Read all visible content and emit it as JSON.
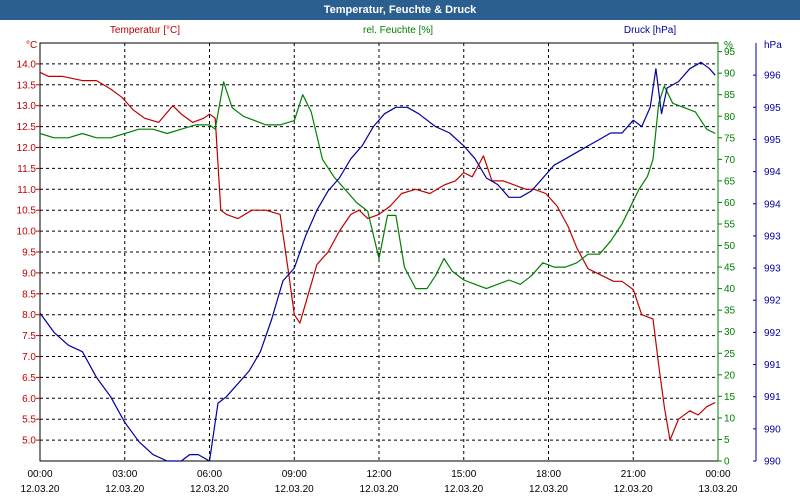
{
  "window": {
    "title": "Temperatur, Feuchte & Druck"
  },
  "chart_data": {
    "type": "line",
    "title": "Temperatur, Feuchte & Druck",
    "grid": true,
    "x_labels": [
      {
        "time": "00:00",
        "date": "12.03.20"
      },
      {
        "time": "03:00",
        "date": "12.03.20"
      },
      {
        "time": "06:00",
        "date": "12.03.20"
      },
      {
        "time": "09:00",
        "date": "12.03.20"
      },
      {
        "time": "12:00",
        "date": "12.03.20"
      },
      {
        "time": "15:00",
        "date": "12.03.20"
      },
      {
        "time": "18:00",
        "date": "12.03.20"
      },
      {
        "time": "21:00",
        "date": "12.03.20"
      },
      {
        "time": "00:00",
        "date": "13.03.20"
      }
    ],
    "xlim_hours": [
      0,
      24
    ],
    "axes": {
      "temperature": {
        "label": "Temperatur [°C]",
        "unit": "°C",
        "color": "#c00000",
        "side": "left",
        "ylim": [
          4.5,
          14.5
        ],
        "ticks": [
          "5.0",
          "5.5",
          "6.0",
          "6.5",
          "7.0",
          "7.5",
          "8.0",
          "8.5",
          "9.0",
          "9.5",
          "10.0",
          "10.5",
          "11.0",
          "11.5",
          "12.0",
          "12.5",
          "13.0",
          "13.5",
          "14.0"
        ]
      },
      "humidity": {
        "label": "rel. Feuchte [%]",
        "unit": "%",
        "color": "#008000",
        "side": "right-inner",
        "ylim": [
          0,
          97
        ],
        "ticks": [
          "0",
          "5",
          "10",
          "15",
          "20",
          "25",
          "30",
          "35",
          "40",
          "45",
          "50",
          "55",
          "60",
          "65",
          "70",
          "75",
          "80",
          "85",
          "90",
          "95"
        ]
      },
      "pressure": {
        "label": "Druck [hPa]",
        "unit": "hPa",
        "color": "#0000a0",
        "side": "right-outer",
        "ylim": [
          990,
          996.5
        ],
        "ticks": [
          "990",
          "990",
          "991",
          "991",
          "992",
          "992",
          "993",
          "993",
          "994",
          "994",
          "995",
          "995",
          "996"
        ],
        "tick_values": [
          990,
          990.5,
          991,
          991.5,
          992,
          992.5,
          993,
          993.5,
          994,
          994.5,
          995,
          995.5,
          996
        ]
      }
    },
    "series": [
      {
        "name": "Temperatur [°C]",
        "axis": "temperature",
        "color": "#c00000",
        "x": [
          0,
          0.3,
          0.8,
          1.5,
          2.0,
          2.5,
          2.9,
          3.3,
          3.7,
          4.2,
          4.7,
          5.0,
          5.4,
          5.8,
          6.0,
          6.2,
          6.4,
          6.6,
          7.0,
          7.5,
          8.0,
          8.5,
          8.8,
          9.0,
          9.2,
          9.5,
          9.8,
          10.2,
          10.6,
          11.0,
          11.3,
          11.6,
          12.0,
          12.4,
          12.8,
          13.3,
          13.8,
          14.3,
          14.7,
          15.0,
          15.3,
          15.7,
          16.0,
          16.4,
          16.8,
          17.2,
          17.5,
          17.9,
          18.3,
          18.7,
          19.0,
          19.4,
          19.7,
          20.0,
          20.3,
          20.6,
          21.0,
          21.3,
          21.7,
          21.9,
          22.1,
          22.3,
          22.6,
          23.0,
          23.3,
          23.6,
          23.9
        ],
        "values": [
          13.8,
          13.7,
          13.7,
          13.6,
          13.6,
          13.4,
          13.2,
          12.9,
          12.7,
          12.6,
          13.0,
          12.8,
          12.6,
          12.7,
          12.8,
          12.7,
          10.5,
          10.4,
          10.3,
          10.5,
          10.5,
          10.4,
          9.0,
          8.0,
          7.8,
          8.5,
          9.2,
          9.5,
          10.0,
          10.4,
          10.5,
          10.3,
          10.4,
          10.6,
          10.9,
          11.0,
          10.9,
          11.1,
          11.2,
          11.4,
          11.3,
          11.8,
          11.2,
          11.2,
          11.1,
          11.0,
          11.0,
          10.9,
          10.6,
          10.1,
          9.6,
          9.1,
          9.0,
          8.9,
          8.8,
          8.8,
          8.6,
          8.0,
          7.9,
          6.8,
          5.8,
          5.0,
          5.5,
          5.7,
          5.6,
          5.8,
          5.9
        ]
      },
      {
        "name": "rel. Feuchte [%]",
        "axis": "humidity",
        "color": "#008000",
        "x": [
          0,
          0.5,
          1.0,
          1.5,
          2.0,
          2.5,
          3.0,
          3.5,
          4.0,
          4.5,
          5.0,
          5.5,
          6.0,
          6.2,
          6.5,
          6.8,
          7.2,
          7.6,
          8.0,
          8.5,
          9.0,
          9.3,
          9.6,
          10.0,
          10.4,
          10.8,
          11.2,
          11.6,
          12.0,
          12.3,
          12.6,
          12.9,
          13.3,
          13.7,
          14.0,
          14.3,
          14.6,
          15.0,
          15.4,
          15.8,
          16.2,
          16.6,
          17.0,
          17.4,
          17.8,
          18.2,
          18.6,
          19.0,
          19.4,
          19.8,
          20.2,
          20.6,
          20.9,
          21.2,
          21.5,
          21.7,
          21.9,
          22.1,
          22.4,
          22.8,
          23.2,
          23.6,
          23.9
        ],
        "values": [
          76,
          75,
          75,
          76,
          75,
          75,
          76,
          77,
          77,
          76,
          77,
          78,
          78,
          77,
          88,
          82,
          80,
          79,
          78,
          78,
          79,
          85,
          81,
          70,
          66,
          63,
          60,
          58,
          47,
          57,
          57,
          45,
          40,
          40,
          43,
          47,
          44,
          42,
          41,
          40,
          41,
          42,
          41,
          43,
          46,
          45,
          45,
          46,
          48,
          48,
          51,
          55,
          59,
          63,
          66,
          70,
          83,
          87,
          83,
          82,
          81,
          77,
          76
        ]
      },
      {
        "name": "Druck [hPa]",
        "axis": "pressure",
        "color": "#0000a0",
        "x": [
          0,
          0.5,
          1.0,
          1.5,
          2.0,
          2.5,
          3.0,
          3.5,
          4.0,
          4.5,
          5.0,
          5.3,
          5.6,
          6.0,
          6.3,
          6.6,
          7.0,
          7.4,
          7.8,
          8.2,
          8.6,
          9.0,
          9.4,
          9.8,
          10.2,
          10.6,
          11.0,
          11.4,
          11.8,
          12.2,
          12.6,
          13.0,
          13.4,
          14.0,
          14.5,
          15.0,
          15.4,
          15.8,
          16.2,
          16.6,
          17.0,
          17.4,
          17.8,
          18.2,
          18.6,
          19.0,
          19.4,
          19.8,
          20.2,
          20.6,
          21.0,
          21.3,
          21.6,
          21.8,
          22.0,
          22.2,
          22.6,
          23.0,
          23.4,
          23.7,
          23.9
        ],
        "values": [
          992.3,
          992.0,
          991.8,
          991.7,
          991.3,
          991.0,
          990.6,
          990.3,
          990.1,
          990.0,
          990.0,
          990.1,
          990.1,
          990.0,
          990.9,
          991.0,
          991.2,
          991.4,
          991.7,
          992.2,
          992.8,
          993.0,
          993.5,
          993.9,
          994.2,
          994.4,
          994.7,
          994.9,
          995.2,
          995.4,
          995.5,
          995.5,
          995.4,
          995.2,
          995.1,
          994.9,
          994.7,
          994.4,
          994.3,
          994.1,
          994.1,
          994.2,
          994.4,
          994.6,
          994.7,
          994.8,
          994.9,
          995.0,
          995.1,
          995.1,
          995.3,
          995.2,
          995.5,
          996.1,
          995.4,
          995.8,
          995.9,
          996.1,
          996.2,
          996.1,
          996.0
        ]
      }
    ]
  }
}
